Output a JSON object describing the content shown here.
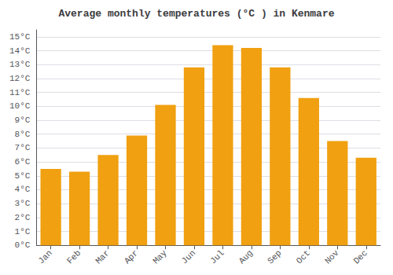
{
  "chart_data": {
    "type": "bar",
    "title": "Average monthly temperatures (°C ) in Kenmare",
    "categories": [
      "Jan",
      "Feb",
      "Mar",
      "Apr",
      "May",
      "Jun",
      "Jul",
      "Aug",
      "Sep",
      "Oct",
      "Nov",
      "Dec"
    ],
    "values": [
      5.5,
      5.3,
      6.5,
      7.9,
      10.1,
      12.8,
      14.4,
      14.2,
      12.8,
      10.6,
      7.5,
      6.3
    ],
    "color": "#F0A010",
    "ylim": [
      0,
      15.5
    ],
    "yticks": [
      {
        "value": 0,
        "label": "0°C"
      },
      {
        "value": 1,
        "label": "1°C"
      },
      {
        "value": 2,
        "label": "2°C"
      },
      {
        "value": 3,
        "label": "3°C"
      },
      {
        "value": 4,
        "label": "4°C"
      },
      {
        "value": 5,
        "label": "5°C"
      },
      {
        "value": 6,
        "label": "6°C"
      },
      {
        "value": 7,
        "label": "7°C"
      },
      {
        "value": 8,
        "label": "8°C"
      },
      {
        "value": 9,
        "label": "9°C"
      },
      {
        "value": 10,
        "label": "10°C"
      },
      {
        "value": 11,
        "label": "11°C"
      },
      {
        "value": 12,
        "label": "12°C"
      },
      {
        "value": 13,
        "label": "13°C"
      },
      {
        "value": 14,
        "label": "14°C"
      },
      {
        "value": 15,
        "label": "15°C"
      }
    ],
    "grid": true
  }
}
